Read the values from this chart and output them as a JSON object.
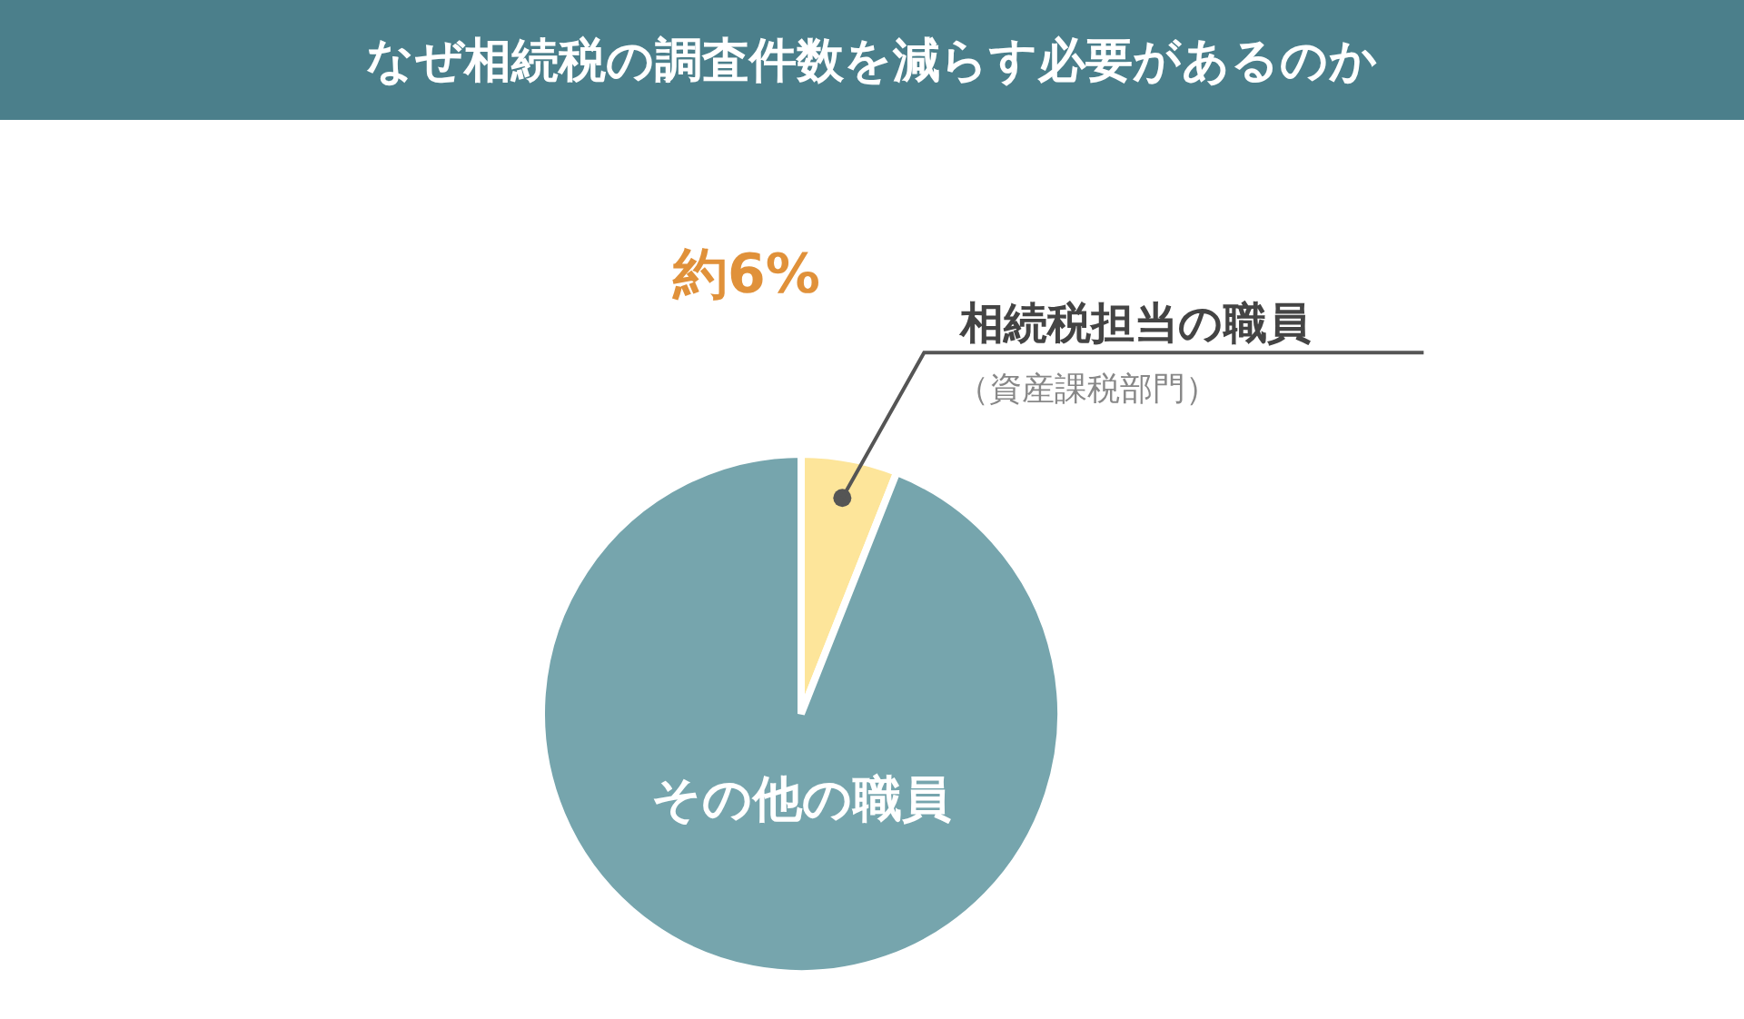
{
  "chart_data": {
    "type": "pie",
    "title": "なぜ相続税の調査件数を減らす必要があるのか",
    "categories": [
      "相続税担当の職員",
      "その他の職員"
    ],
    "values": [
      6,
      94
    ],
    "colors": [
      "#fde59a",
      "#76a5ad"
    ],
    "value_labels": [
      "約6%",
      null
    ],
    "annotations": [
      "（資産課税部門）"
    ]
  }
}
